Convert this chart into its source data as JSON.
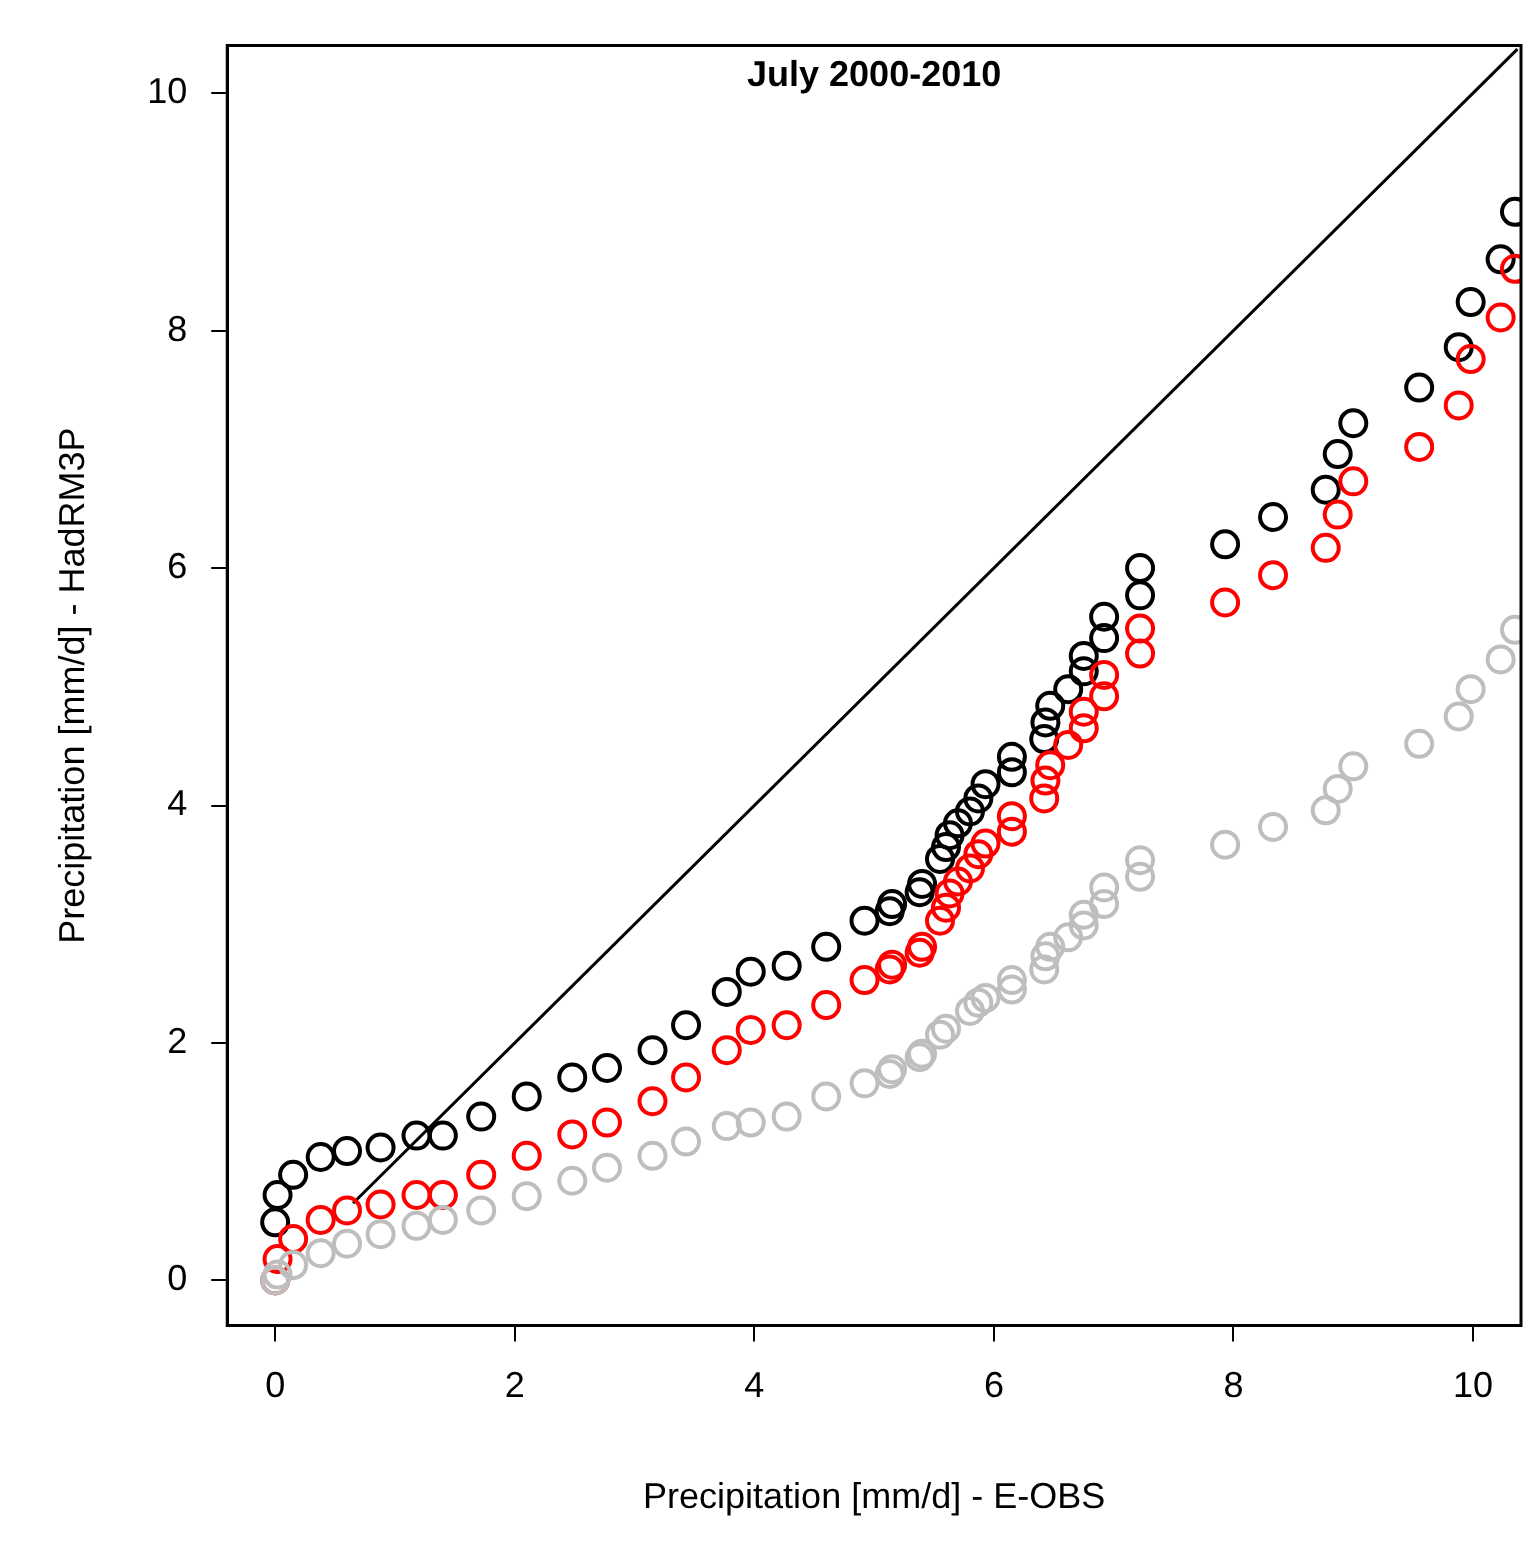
{
  "chart_data": {
    "type": "scatter",
    "title": "July 2000-2010",
    "xlabel": "Precipitation [mm/d] - E-OBS",
    "ylabel": "Precipitation [mm/d] - HadRM3P",
    "x": [
      0,
      0.02,
      0.15,
      0.38,
      0.6,
      0.88,
      1.18,
      1.4,
      1.72,
      2.1,
      2.48,
      2.77,
      3.15,
      3.43,
      3.77,
      3.97,
      4.27,
      4.6,
      4.92,
      5.13,
      5.15,
      5.38,
      5.4,
      5.55,
      5.6,
      5.63,
      5.7,
      5.8,
      5.87,
      5.93,
      6.15,
      6.15,
      6.42,
      6.43,
      6.47,
      6.62,
      6.75,
      6.75,
      6.92,
      6.92,
      7.22,
      7.22,
      7.93,
      8.33,
      8.77,
      8.87,
      9.0,
      9.55,
      9.88,
      9.98,
      10.23,
      10.35
    ],
    "series": [
      {
        "color": "#bebebe",
        "values": [
          0,
          0.05,
          0.13,
          0.23,
          0.31,
          0.39,
          0.46,
          0.51,
          0.59,
          0.71,
          0.84,
          0.95,
          1.05,
          1.17,
          1.3,
          1.33,
          1.38,
          1.55,
          1.66,
          1.74,
          1.78,
          1.88,
          1.91,
          2.07,
          2.12,
          null,
          null,
          2.27,
          2.34,
          2.38,
          2.45,
          2.53,
          2.62,
          2.73,
          2.81,
          2.89,
          2.99,
          3.08,
          3.17,
          3.31,
          3.4,
          3.54,
          3.67,
          3.82,
          3.96,
          4.14,
          4.33,
          4.52,
          4.75,
          4.98,
          5.23,
          5.48
        ]
      },
      {
        "color": "#ff0000",
        "values": [
          0,
          0.18,
          0.35,
          0.51,
          0.59,
          0.64,
          0.72,
          0.72,
          0.89,
          1.05,
          1.23,
          1.33,
          1.51,
          1.71,
          1.94,
          2.11,
          2.15,
          2.32,
          2.53,
          2.62,
          2.66,
          2.76,
          2.81,
          3.03,
          3.14,
          3.26,
          3.36,
          3.47,
          3.59,
          3.68,
          3.78,
          3.91,
          4.06,
          4.21,
          4.34,
          4.51,
          4.65,
          4.79,
          4.92,
          5.1,
          5.28,
          5.49,
          5.71,
          5.94,
          6.17,
          6.45,
          6.73,
          7.02,
          7.37,
          7.76,
          8.11,
          8.52
        ]
      },
      {
        "color": "#000000",
        "values": [
          0.49,
          0.72,
          0.89,
          1.04,
          1.09,
          1.12,
          1.22,
          1.22,
          1.38,
          1.55,
          1.71,
          1.79,
          1.94,
          2.15,
          2.43,
          2.6,
          2.65,
          2.81,
          3.03,
          3.11,
          3.17,
          3.27,
          3.34,
          3.55,
          3.65,
          3.75,
          3.85,
          3.95,
          4.06,
          4.18,
          4.28,
          4.41,
          4.56,
          4.7,
          4.84,
          4.98,
          5.13,
          5.26,
          5.41,
          5.59,
          5.77,
          6.0,
          6.2,
          6.43,
          6.66,
          6.96,
          7.22,
          7.52,
          7.86,
          8.24,
          8.6,
          9.0
        ]
      },
      {
        "type": "line",
        "color": "#000000",
        "x": [
          0.65,
          10.37
        ],
        "values": [
          0.65,
          10.37
        ],
        "marker": "none"
      }
    ],
    "xlim": [
      -0.4,
      10.4
    ],
    "ylim": [
      -0.38,
      10.4
    ],
    "xticks": [
      0,
      2,
      4,
      6,
      8,
      10
    ],
    "yticks": [
      0,
      2,
      4,
      6,
      8,
      10
    ],
    "marker": "circle",
    "grid": false,
    "legend": false
  }
}
